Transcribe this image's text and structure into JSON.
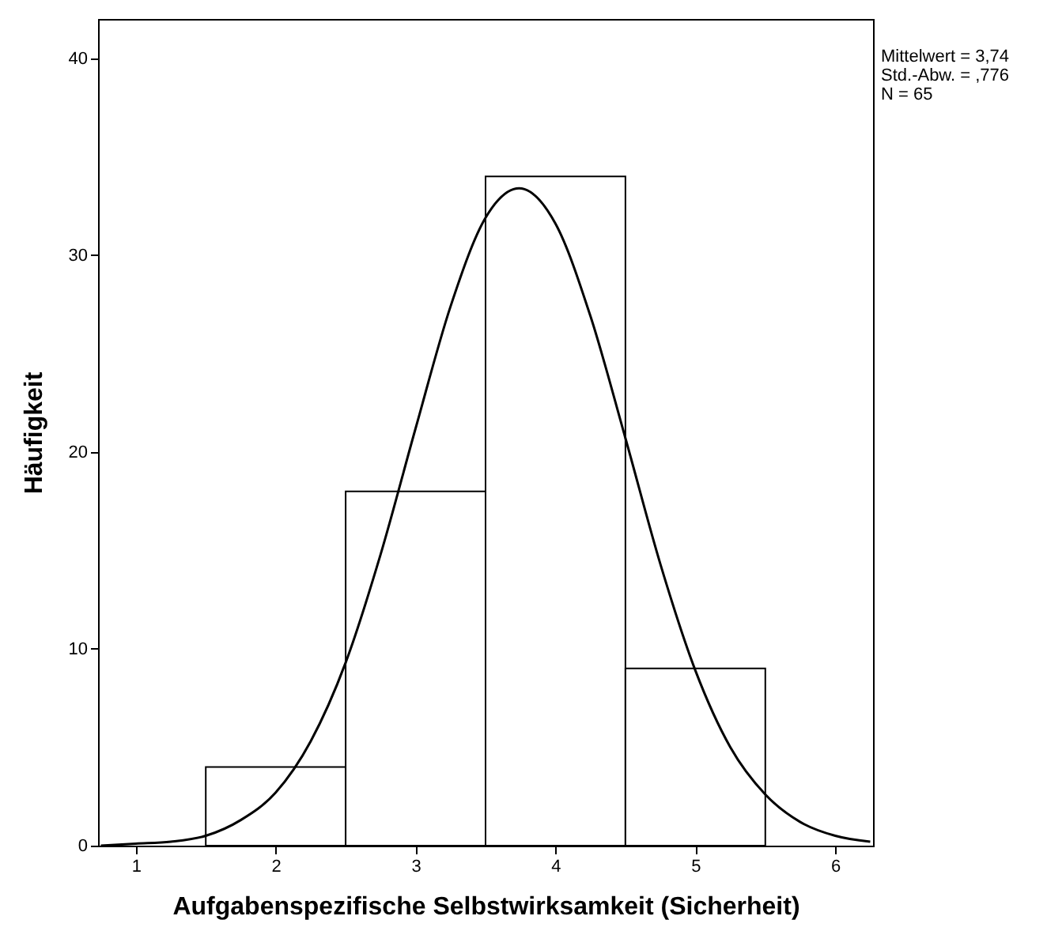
{
  "chart_data": {
    "type": "histogram",
    "xlabel": "Aufgabenspezifische Selbstwirksamkeit (Sicherheit)",
    "ylabel": "Häufigkeit",
    "bins": [
      1.5,
      2.5,
      3.5,
      4.5,
      5.5
    ],
    "values": [
      4,
      18,
      34,
      9
    ],
    "color": "#ffffff",
    "series": [
      {
        "type": "line",
        "color": "#000000",
        "x": [
          0.75,
          1.0,
          1.25,
          1.5,
          1.75,
          2.0,
          2.25,
          2.5,
          2.75,
          3.0,
          3.25,
          3.5,
          3.74,
          4.0,
          4.25,
          4.5,
          4.75,
          5.0,
          5.25,
          5.5,
          5.75,
          6.0,
          6.25
        ],
        "values": [
          0.0,
          0.1,
          0.2,
          0.5,
          1.3,
          2.7,
          5.3,
          9.3,
          14.8,
          21.2,
          27.4,
          31.9,
          33.4,
          31.6,
          26.9,
          20.7,
          14.3,
          8.9,
          5.0,
          2.6,
          1.2,
          0.5,
          0.2
        ]
      }
    ],
    "xlim": [
      0.73,
      6.27
    ],
    "xticks": [
      1,
      2,
      3,
      4,
      5,
      6
    ],
    "ylim": [
      0,
      42
    ],
    "yticks": [
      0,
      10,
      20,
      30,
      40
    ],
    "marker": "none",
    "line_style": "solid",
    "annotations": [
      "Mittelwert = 3,74",
      "Std.-Abw. = ,776",
      "N = 65"
    ]
  }
}
